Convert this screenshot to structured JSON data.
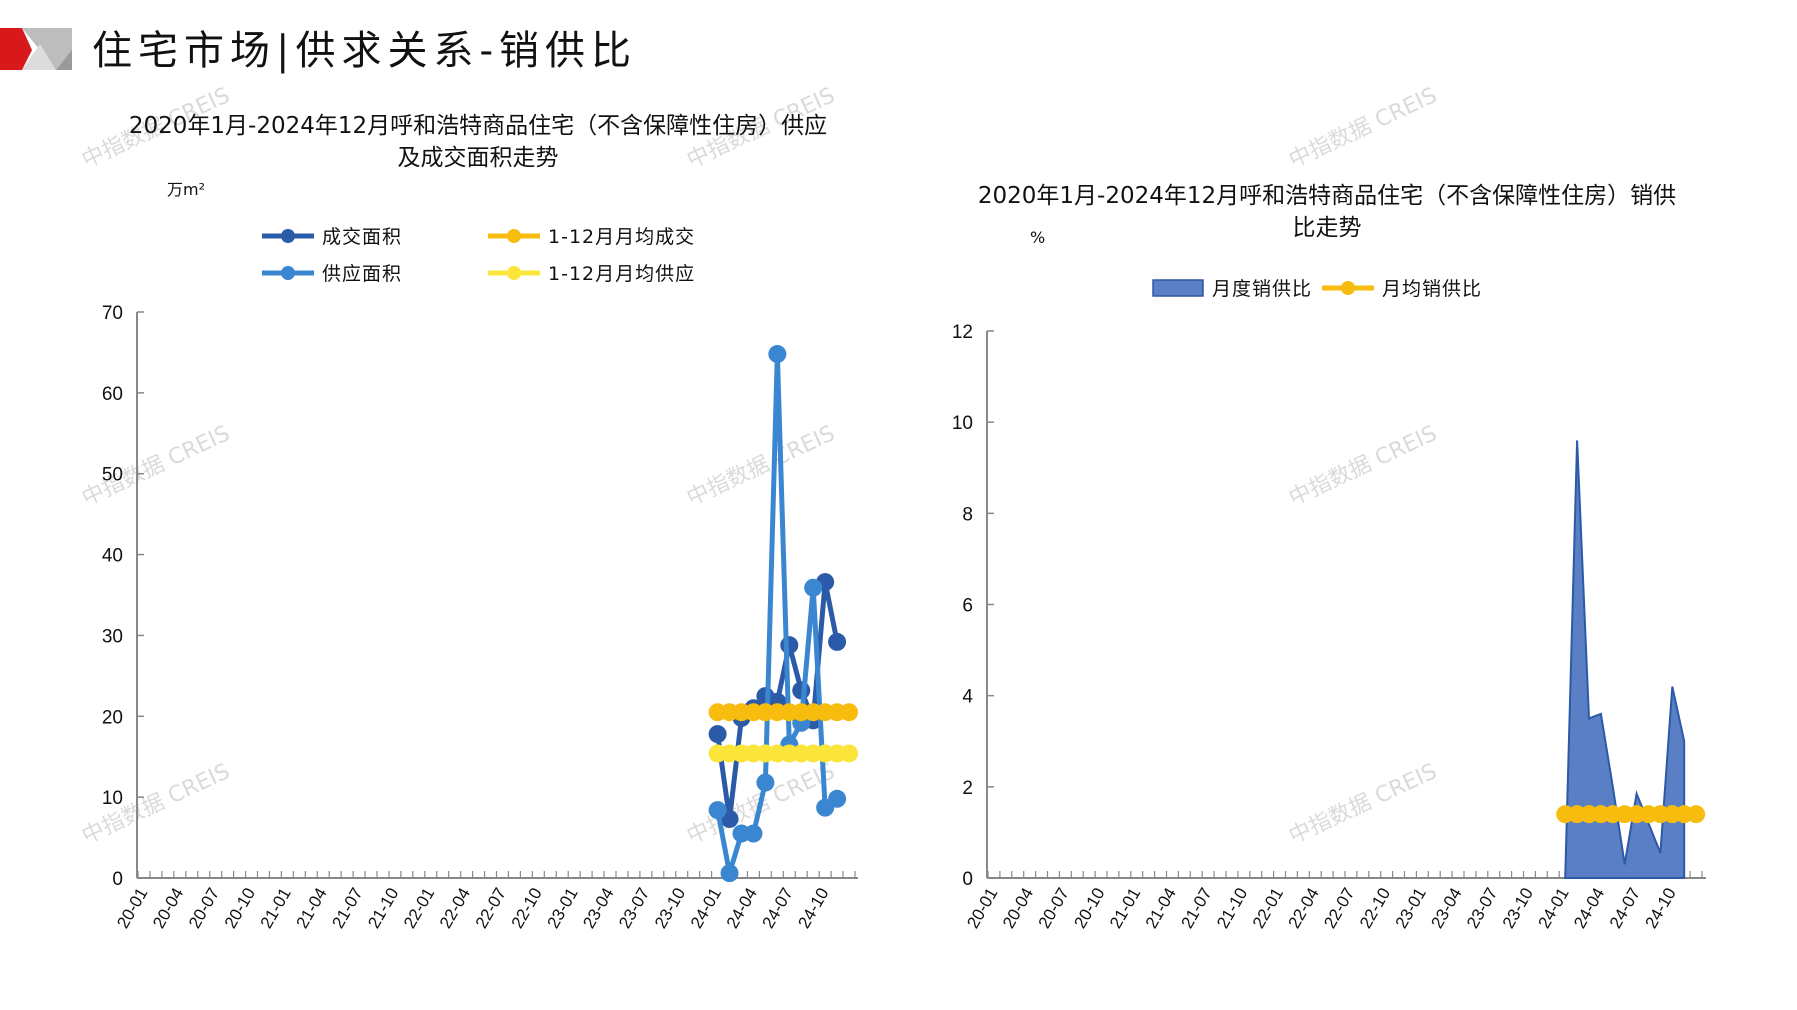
{
  "page_title": "住宅市场|供求关系-销供比",
  "watermark": "中指数据 CREIS",
  "colors": {
    "logo_red": "#d7191c",
    "logo_gray": "#b5b5b5",
    "axis": "#888888"
  },
  "tick_labels": [
    "20-01",
    "20-04",
    "20-07",
    "20-10",
    "21-01",
    "21-04",
    "21-07",
    "21-10",
    "22-01",
    "22-04",
    "22-07",
    "22-10",
    "23-01",
    "23-04",
    "23-07",
    "23-10",
    "24-01",
    "24-04",
    "24-07",
    "24-10"
  ],
  "chart_data": [
    {
      "type": "line",
      "title_line1": "2020年1月-2024年12月呼和浩特商品住宅（不含保障性住房）供应",
      "title_line2": "及成交面积走势",
      "ylabel": "万m²",
      "ylim": [
        0,
        70
      ],
      "yticks": [
        "0",
        "10",
        "20",
        "30",
        "40",
        "50",
        "60",
        "70"
      ],
      "legend_placement": "top",
      "series": [
        {
          "name": "成交面积",
          "color": "#2b5aa8",
          "x": [
            "24-01",
            "24-02",
            "24-03",
            "24-04",
            "24-05",
            "24-06",
            "24-07",
            "24-08",
            "24-09",
            "24-10",
            "24-11"
          ],
          "values": [
            17.8,
            7.3,
            19.8,
            21.0,
            22.5,
            21.8,
            28.8,
            23.2,
            19.5,
            36.6,
            29.2
          ]
        },
        {
          "name": "供应面积",
          "color": "#3b86d0",
          "x": [
            "24-01",
            "24-02",
            "24-03",
            "24-04",
            "24-05",
            "24-06",
            "24-07",
            "24-08",
            "24-09",
            "24-10",
            "24-11"
          ],
          "values": [
            8.4,
            0.6,
            5.5,
            5.5,
            11.8,
            64.8,
            16.5,
            19.2,
            35.9,
            8.7,
            9.8
          ]
        },
        {
          "name": "1-12月月均成交",
          "color": "#f8bc0f",
          "x": [
            "24-01",
            "24-02",
            "24-03",
            "24-04",
            "24-05",
            "24-06",
            "24-07",
            "24-08",
            "24-09",
            "24-10",
            "24-11",
            "24-12"
          ],
          "values": [
            20.5,
            20.5,
            20.5,
            20.5,
            20.5,
            20.5,
            20.5,
            20.5,
            20.5,
            20.5,
            20.5,
            20.5
          ]
        },
        {
          "name": "1-12月月均供应",
          "color": "#fbe53b",
          "x": [
            "24-01",
            "24-02",
            "24-03",
            "24-04",
            "24-05",
            "24-06",
            "24-07",
            "24-08",
            "24-09",
            "24-10",
            "24-11",
            "24-12"
          ],
          "values": [
            15.4,
            15.4,
            15.4,
            15.4,
            15.4,
            15.4,
            15.4,
            15.4,
            15.4,
            15.4,
            15.4,
            15.4
          ]
        }
      ]
    },
    {
      "type": "area",
      "title_line1": "2020年1月-2024年12月呼和浩特商品住宅（不含保障性住房）销供",
      "title_line2": "比走势",
      "ylabel": "%",
      "ylim": [
        0,
        12
      ],
      "yticks": [
        "0",
        "2",
        "4",
        "6",
        "8",
        "10",
        "12"
      ],
      "legend_placement": "top",
      "series": [
        {
          "name": "月度销供比",
          "type": "area",
          "color": "#5b7fc4",
          "x": [
            "24-01",
            "24-02",
            "24-03",
            "24-04",
            "24-05",
            "24-06",
            "24-07",
            "24-08",
            "24-09",
            "24-10",
            "24-11"
          ],
          "values": [
            0,
            9.6,
            3.5,
            3.6,
            2.0,
            0.3,
            1.85,
            1.2,
            0.55,
            4.2,
            3.0
          ]
        },
        {
          "name": "月均销供比",
          "type": "line",
          "color": "#f8bc0f",
          "x": [
            "24-01",
            "24-02",
            "24-03",
            "24-04",
            "24-05",
            "24-06",
            "24-07",
            "24-08",
            "24-09",
            "24-10",
            "24-11",
            "24-12"
          ],
          "values": [
            1.4,
            1.4,
            1.4,
            1.4,
            1.4,
            1.4,
            1.4,
            1.4,
            1.4,
            1.4,
            1.4,
            1.4
          ]
        }
      ]
    }
  ]
}
